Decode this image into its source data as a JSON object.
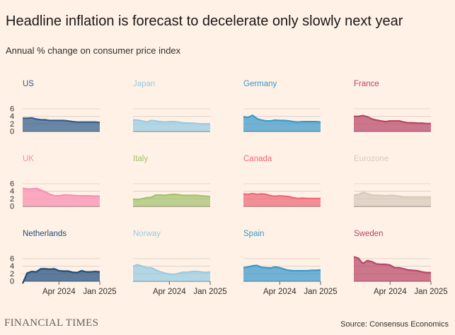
{
  "title": "Headline inflation is forecast to decelerate only slowly next year",
  "subtitle": "Annual % change on consumer price index",
  "footer": {
    "brand": "FINANCIAL TIMES",
    "source": "Source: Consensus Economics"
  },
  "chart_data": {
    "type": "area",
    "layout": "small-multiples",
    "ylim": [
      0,
      6
    ],
    "y_ticks": [
      0,
      2,
      4,
      6
    ],
    "y_tick_labels": [
      "0",
      "2",
      "4",
      "6"
    ],
    "x_range": [
      "Aug 2023",
      "Jan 2025"
    ],
    "x_ticks": [
      {
        "month_index": 8,
        "label": "Apr 2024"
      },
      {
        "month_index": 17,
        "label": "Jan 2025"
      }
    ],
    "panels": [
      {
        "name": "US",
        "color": "#2f5d8e",
        "values": [
          3.5,
          3.5,
          3.6,
          3.3,
          3.1,
          3.1,
          2.9,
          2.9,
          2.9,
          2.9,
          2.8,
          2.6,
          2.5,
          2.5,
          2.5,
          2.5,
          2.5,
          2.4
        ]
      },
      {
        "name": "Japan",
        "color": "#96cce3",
        "values": [
          3.1,
          3.0,
          2.8,
          2.5,
          2.9,
          2.8,
          2.6,
          2.5,
          2.6,
          2.6,
          2.5,
          2.3,
          2.2,
          2.2,
          2.1,
          2.0,
          2.0,
          2.0
        ]
      },
      {
        "name": "Germany",
        "color": "#3a99cc",
        "values": [
          3.9,
          3.7,
          4.3,
          3.4,
          3.0,
          2.8,
          2.8,
          3.0,
          2.9,
          2.9,
          2.8,
          2.6,
          2.5,
          2.6,
          2.6,
          2.6,
          2.6,
          2.5
        ]
      },
      {
        "name": "France",
        "color": "#b8466a",
        "values": [
          4.0,
          4.0,
          4.2,
          3.9,
          3.3,
          3.0,
          2.8,
          2.6,
          2.8,
          2.8,
          2.8,
          2.5,
          2.3,
          2.3,
          2.2,
          2.2,
          2.1,
          2.1
        ]
      },
      {
        "name": "UK",
        "color": "#f98eb3",
        "values": [
          4.8,
          4.6,
          4.6,
          4.8,
          4.3,
          3.8,
          3.2,
          2.8,
          2.8,
          3.0,
          3.0,
          2.9,
          2.8,
          2.8,
          2.8,
          2.8,
          2.7,
          2.7
        ]
      },
      {
        "name": "Italy",
        "color": "#a3c46e",
        "values": [
          1.9,
          1.8,
          2.0,
          2.3,
          2.4,
          3.0,
          3.0,
          2.9,
          3.1,
          3.2,
          3.1,
          2.9,
          2.9,
          2.9,
          2.9,
          2.8,
          2.7,
          2.6
        ]
      },
      {
        "name": "Canada",
        "color": "#f06877",
        "values": [
          3.3,
          3.2,
          3.4,
          3.2,
          3.3,
          3.2,
          2.8,
          2.7,
          2.8,
          2.7,
          2.6,
          2.3,
          2.1,
          2.2,
          2.1,
          2.1,
          2.1,
          2.1
        ]
      },
      {
        "name": "Eurozone",
        "color": "#d7cbbd",
        "values": [
          3.0,
          3.1,
          3.7,
          3.4,
          3.0,
          2.9,
          2.9,
          2.8,
          2.9,
          2.9,
          2.7,
          2.5,
          2.5,
          2.5,
          2.5,
          2.5,
          2.5,
          2.5
        ]
      },
      {
        "name": "Netherlands",
        "color": "#1e4d7d",
        "values": [
          -0.6,
          2.2,
          2.6,
          2.5,
          3.3,
          3.3,
          3.2,
          3.3,
          2.8,
          2.7,
          2.7,
          2.4,
          2.3,
          2.8,
          2.5,
          2.5,
          2.6,
          2.5
        ]
      },
      {
        "name": "Norway",
        "color": "#96cce3",
        "values": [
          4.0,
          4.4,
          4.0,
          3.6,
          3.6,
          3.0,
          2.5,
          2.2,
          1.9,
          1.8,
          2.1,
          2.4,
          2.4,
          2.6,
          2.6,
          2.5,
          2.3,
          2.5
        ]
      },
      {
        "name": "Spain",
        "color": "#3a99cc",
        "values": [
          3.6,
          3.8,
          4.1,
          4.2,
          3.7,
          3.6,
          3.5,
          3.8,
          3.6,
          3.2,
          2.9,
          2.8,
          2.8,
          2.8,
          2.8,
          2.9,
          2.9,
          3.0
        ]
      },
      {
        "name": "Sweden",
        "color": "#b8466a",
        "values": [
          6.5,
          6.1,
          4.7,
          5.5,
          5.2,
          4.6,
          4.5,
          4.5,
          4.3,
          3.6,
          3.6,
          3.3,
          3.0,
          2.9,
          2.8,
          2.5,
          2.3,
          2.3
        ]
      }
    ]
  }
}
